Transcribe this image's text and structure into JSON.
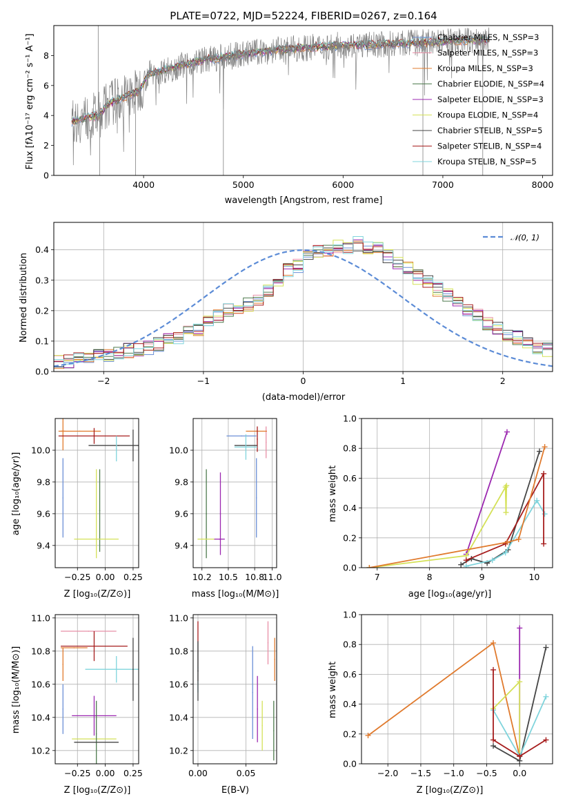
{
  "figure": {
    "title": "PLATE=0722, MJD=52224, FIBERID=0267, z=0.164"
  },
  "chart_data": [
    {
      "id": "spectrum",
      "type": "line",
      "xlabel": "wavelength [Angstrom, rest frame]",
      "ylabel": "Flux [fλ10⁻¹⁷ erg cm⁻² s⁻¹ A⁻¹]",
      "xlim": [
        3100,
        8100
      ],
      "ylim": [
        0,
        10
      ],
      "xticks": [
        4000,
        5000,
        6000,
        7000,
        8000
      ],
      "yticks": [
        0,
        2,
        4,
        6,
        8
      ],
      "grid": false,
      "legend_position": "top-right",
      "data_color": "#808080",
      "continuum": {
        "x": [
          3280,
          3400,
          3550,
          3650,
          3800,
          3950,
          4050,
          4200,
          4400,
          4600,
          4800,
          5000,
          5200,
          5400,
          5600,
          5800,
          6000,
          6200,
          6400,
          6600,
          6800,
          7000,
          7200,
          7400
        ],
        "y": [
          3.6,
          3.8,
          4.0,
          4.8,
          5.2,
          5.6,
          6.8,
          7.0,
          7.4,
          7.7,
          7.9,
          8.1,
          8.3,
          8.4,
          8.5,
          8.6,
          8.7,
          8.7,
          8.75,
          8.8,
          8.85,
          8.9,
          9.0,
          9.0
        ]
      },
      "series": [
        {
          "name": "Chabrier MILES, N_SSP=3",
          "color": "#6b8fd6"
        },
        {
          "name": "Salpeter MILES, N_SSP=3",
          "color": "#e88fa6"
        },
        {
          "name": "Kroupa MILES, N_SSP=3",
          "color": "#e07a2d"
        },
        {
          "name": "Chabrier ELODIE, N_SSP=4",
          "color": "#4d7a4d"
        },
        {
          "name": "Salpeter ELODIE, N_SSP=3",
          "color": "#9b27b0"
        },
        {
          "name": "Kroupa ELODIE, N_SSP=4",
          "color": "#d4e157"
        },
        {
          "name": "Chabrier STELIB, N_SSP=5",
          "color": "#454545"
        },
        {
          "name": "Salpeter STELIB, N_SSP=4",
          "color": "#a61c1c"
        },
        {
          "name": "Kroupa STELIB, N_SSP=5",
          "color": "#7fd4dc"
        }
      ]
    },
    {
      "id": "residuals",
      "type": "line",
      "xlabel": "(data-model)/error",
      "ylabel": "Normed distribution",
      "xlim": [
        -2.5,
        2.5
      ],
      "ylim": [
        0,
        0.49
      ],
      "xticks": [
        -2,
        -1,
        0,
        1,
        2
      ],
      "yticks": [
        0.0,
        0.1,
        0.2,
        0.3,
        0.4
      ],
      "grid": true,
      "legend_position": "top-right",
      "gaussian": {
        "name": "𝒩(0, 1)",
        "color": "#5b8bd6"
      },
      "bin_edges_start": -2.5,
      "bin_width": 0.1,
      "base_hist": [
        0.03,
        0.035,
        0.04,
        0.04,
        0.05,
        0.055,
        0.06,
        0.07,
        0.075,
        0.08,
        0.09,
        0.1,
        0.11,
        0.13,
        0.14,
        0.16,
        0.18,
        0.2,
        0.21,
        0.22,
        0.24,
        0.27,
        0.3,
        0.33,
        0.35,
        0.38,
        0.39,
        0.4,
        0.41,
        0.41,
        0.42,
        0.41,
        0.4,
        0.38,
        0.36,
        0.34,
        0.31,
        0.29,
        0.27,
        0.25,
        0.22,
        0.2,
        0.18,
        0.16,
        0.14,
        0.12,
        0.11,
        0.09,
        0.08,
        0.07,
        0.06,
        0.05,
        0.04,
        0.03,
        0.03,
        0.025,
        0.02,
        0.02
      ]
    },
    {
      "id": "age_vs_Z",
      "type": "scatter",
      "xlabel": "Z [log₁₀(Z/Z⊙)]",
      "ylabel": "age  [log₁₀(age/yr)]",
      "xlim": [
        -0.45,
        0.3
      ],
      "ylim": [
        9.26,
        10.2
      ],
      "xticks": [
        -0.25,
        0.0,
        0.25
      ],
      "yticks": [
        9.4,
        9.6,
        9.8,
        10.0
      ],
      "grid": true,
      "points": [
        {
          "series": 0,
          "x": -0.38,
          "y": 9.7,
          "xerr": 0.0,
          "yerr": 0.25
        },
        {
          "series": 2,
          "x": -0.38,
          "y": 10.12,
          "xerr": 0.02,
          "yerr": 0.12
        },
        {
          "series": 2,
          "x": -0.23,
          "y": 10.12,
          "xerr": 0.19,
          "yerr": 0.0
        },
        {
          "series": 7,
          "x": -0.1,
          "y": 10.09,
          "xerr": 0.32,
          "yerr": 0.05
        },
        {
          "series": 6,
          "x": 0.12,
          "y": 10.03,
          "xerr": 0.27,
          "yerr": 0.0
        },
        {
          "series": 6,
          "x": 0.25,
          "y": 10.03,
          "xerr": 0.0,
          "yerr": 0.1
        },
        {
          "series": 8,
          "x": 0.1,
          "y": 10.01,
          "xerr": 0.0,
          "yerr": 0.08
        },
        {
          "series": 3,
          "x": -0.05,
          "y": 9.62,
          "xerr": 0.0,
          "yerr": 0.26
        },
        {
          "series": 5,
          "x": -0.08,
          "y": 9.44,
          "xerr": 0.2,
          "yerr": 0.0
        },
        {
          "series": 5,
          "x": -0.08,
          "y": 9.6,
          "xerr": 0.0,
          "yerr": 0.28
        }
      ]
    },
    {
      "id": "age_vs_mass",
      "type": "scatter",
      "xlabel": "mass [log₁₀(M/M⊙)]",
      "ylabel": "",
      "xlim": [
        10.1,
        11.05
      ],
      "ylim": [
        9.26,
        10.2
      ],
      "xticks": [
        10.2,
        10.5,
        10.8,
        11.0
      ],
      "yticks": [
        9.4,
        9.6,
        9.8,
        10.0
      ],
      "grid": true,
      "points": [
        {
          "series": 0,
          "x": 10.82,
          "y": 9.7,
          "xerr": 0.0,
          "yerr": 0.25
        },
        {
          "series": 0,
          "x": 10.65,
          "y": 10.09,
          "xerr": 0.17,
          "yerr": 0.0
        },
        {
          "series": 1,
          "x": 10.93,
          "y": 10.05,
          "xerr": 0.0,
          "yerr": 0.1
        },
        {
          "series": 2,
          "x": 10.82,
          "y": 10.12,
          "xerr": 0.12,
          "yerr": 0.0
        },
        {
          "series": 7,
          "x": 10.83,
          "y": 10.07,
          "xerr": 0.0,
          "yerr": 0.08
        },
        {
          "series": 6,
          "x": 10.7,
          "y": 10.03,
          "xerr": 0.13,
          "yerr": 0.0
        },
        {
          "series": 8,
          "x": 10.7,
          "y": 10.02,
          "xerr": 0.13,
          "yerr": 0.08
        },
        {
          "series": 3,
          "x": 10.25,
          "y": 9.6,
          "xerr": 0.0,
          "yerr": 0.28
        },
        {
          "series": 4,
          "x": 10.41,
          "y": 9.6,
          "xerr": 0.0,
          "yerr": 0.26
        },
        {
          "series": 5,
          "x": 10.25,
          "y": 9.44,
          "xerr": 0.1,
          "yerr": 0.0
        },
        {
          "series": 4,
          "x": 10.4,
          "y": 9.44,
          "xerr": 0.06,
          "yerr": 0.0
        }
      ]
    },
    {
      "id": "weight_vs_age",
      "type": "line",
      "xlabel": "age  [log₁₀(age/yr)]",
      "ylabel": "mass weight",
      "xlim": [
        6.7,
        10.35
      ],
      "ylim": [
        0,
        1.0
      ],
      "xticks": [
        7,
        8,
        9,
        10
      ],
      "yticks": [
        0.0,
        0.2,
        0.4,
        0.6,
        0.8,
        1.0
      ],
      "grid": true,
      "series": [
        {
          "series": 4,
          "x": [
            8.7,
            9.48
          ],
          "y": [
            0.09,
            0.91
          ]
        },
        {
          "series": 5,
          "x": [
            6.85,
            8.7,
            9.45,
            9.46,
            9.47
          ],
          "y": [
            0.0,
            0.08,
            0.54,
            0.37,
            0.55
          ]
        },
        {
          "series": 6,
          "x": [
            8.6,
            8.8,
            9.1,
            9.5,
            10.1
          ],
          "y": [
            0.02,
            0.06,
            0.03,
            0.12,
            0.78
          ]
        },
        {
          "series": 8,
          "x": [
            8.7,
            9.2,
            9.45,
            10.05,
            10.2
          ],
          "y": [
            0.01,
            0.05,
            0.1,
            0.45,
            0.36
          ]
        },
        {
          "series": 7,
          "x": [
            8.7,
            9.45,
            10.18,
            10.18
          ],
          "y": [
            0.05,
            0.16,
            0.63,
            0.16
          ]
        },
        {
          "series": 2,
          "x": [
            6.85,
            9.48,
            9.7,
            10.2
          ],
          "y": [
            0.0,
            0.17,
            0.19,
            0.81
          ]
        }
      ]
    },
    {
      "id": "mass_vs_Z",
      "type": "scatter",
      "xlabel": "Z [log₁₀(Z/Z⊙)]",
      "ylabel": "mass [log₁₀(M/M⊙)]",
      "xlim": [
        -0.45,
        0.3
      ],
      "ylim": [
        10.12,
        11.02
      ],
      "xticks": [
        -0.25,
        0.0,
        0.25
      ],
      "yticks": [
        10.2,
        10.4,
        10.6,
        10.8,
        11.0
      ],
      "grid": true,
      "points": [
        {
          "series": 1,
          "x": -0.15,
          "y": 10.92,
          "xerr": 0.25,
          "yerr": 0.0
        },
        {
          "series": 2,
          "x": -0.38,
          "y": 10.72,
          "xerr": 0.0,
          "yerr": 0.1
        },
        {
          "series": 2,
          "x": -0.28,
          "y": 10.82,
          "xerr": 0.12,
          "yerr": 0.0
        },
        {
          "series": 7,
          "x": -0.1,
          "y": 10.83,
          "xerr": 0.3,
          "yerr": 0.09
        },
        {
          "series": 8,
          "x": 0.1,
          "y": 10.69,
          "xerr": 0.28,
          "yerr": 0.08
        },
        {
          "series": 6,
          "x": 0.25,
          "y": 10.69,
          "xerr": 0.0,
          "yerr": 0.19
        },
        {
          "series": 0,
          "x": -0.38,
          "y": 10.45,
          "xerr": 0.0,
          "yerr": 0.15
        },
        {
          "series": 4,
          "x": -0.1,
          "y": 10.41,
          "xerr": 0.2,
          "yerr": 0.12
        },
        {
          "series": 5,
          "x": -0.1,
          "y": 10.27,
          "xerr": 0.2,
          "yerr": 0.0
        },
        {
          "series": 3,
          "x": -0.08,
          "y": 10.3,
          "xerr": 0.0,
          "yerr": 0.2
        },
        {
          "series": 6,
          "x": -0.08,
          "y": 10.25,
          "xerr": 0.2,
          "yerr": 0.0
        }
      ]
    },
    {
      "id": "mass_vs_ebv",
      "type": "scatter",
      "xlabel": "E(B-V)",
      "ylabel": "",
      "xlim": [
        -0.005,
        0.082
      ],
      "ylim": [
        10.12,
        11.02
      ],
      "xticks": [
        0.0,
        0.05
      ],
      "xtick_labels": [
        "0.00",
        "0.05"
      ],
      "yticks": [
        10.2,
        10.4,
        10.6,
        10.8,
        11.0
      ],
      "grid": true,
      "points": [
        {
          "series": 7,
          "x": 0.0,
          "y": 10.8,
          "xerr": 0.0,
          "yerr": 0.18
        },
        {
          "series": 8,
          "x": 0.0,
          "y": 10.7,
          "xerr": 0.0,
          "yerr": 0.15
        },
        {
          "series": 6,
          "x": 0.0,
          "y": 10.68,
          "xerr": 0.0,
          "yerr": 0.18
        },
        {
          "series": 0,
          "x": 0.057,
          "y": 10.55,
          "xerr": 0.0,
          "yerr": 0.28
        },
        {
          "series": 4,
          "x": 0.062,
          "y": 10.45,
          "xerr": 0.0,
          "yerr": 0.2
        },
        {
          "series": 1,
          "x": 0.073,
          "y": 10.85,
          "xerr": 0.0,
          "yerr": 0.13
        },
        {
          "series": 5,
          "x": 0.067,
          "y": 10.35,
          "xerr": 0.0,
          "yerr": 0.15
        },
        {
          "series": 2,
          "x": 0.08,
          "y": 10.75,
          "xerr": 0.0,
          "yerr": 0.13
        },
        {
          "series": 3,
          "x": 0.079,
          "y": 10.32,
          "xerr": 0.0,
          "yerr": 0.18
        }
      ]
    },
    {
      "id": "weight_vs_Z",
      "type": "line",
      "xlabel": "Z [log₁₀(Z/Z⊙)]",
      "ylabel": "mass weight",
      "xlim": [
        -2.4,
        0.5
      ],
      "ylim": [
        0,
        1.0
      ],
      "xticks": [
        -2.0,
        -1.5,
        -1.0,
        -0.5,
        0.0
      ],
      "yticks": [
        0.0,
        0.2,
        0.4,
        0.6,
        0.8,
        1.0
      ],
      "grid": true,
      "series": [
        {
          "series": 2,
          "x": [
            -2.3,
            -0.4,
            0.0
          ],
          "y": [
            0.19,
            0.81,
            0.05
          ]
        },
        {
          "series": 4,
          "x": [
            0.0,
            0.0
          ],
          "y": [
            0.91,
            0.05
          ]
        },
        {
          "series": 5,
          "x": [
            -0.4,
            0.0,
            0.0
          ],
          "y": [
            0.37,
            0.55,
            0.05
          ]
        },
        {
          "series": 6,
          "x": [
            -0.4,
            0.0,
            0.4
          ],
          "y": [
            0.12,
            0.02,
            0.78
          ]
        },
        {
          "series": 8,
          "x": [
            -0.4,
            0.0,
            0.4
          ],
          "y": [
            0.36,
            0.05,
            0.45
          ]
        },
        {
          "series": 7,
          "x": [
            -0.4,
            -0.4,
            0.0,
            0.4
          ],
          "y": [
            0.63,
            0.16,
            0.05,
            0.16
          ]
        }
      ]
    }
  ]
}
